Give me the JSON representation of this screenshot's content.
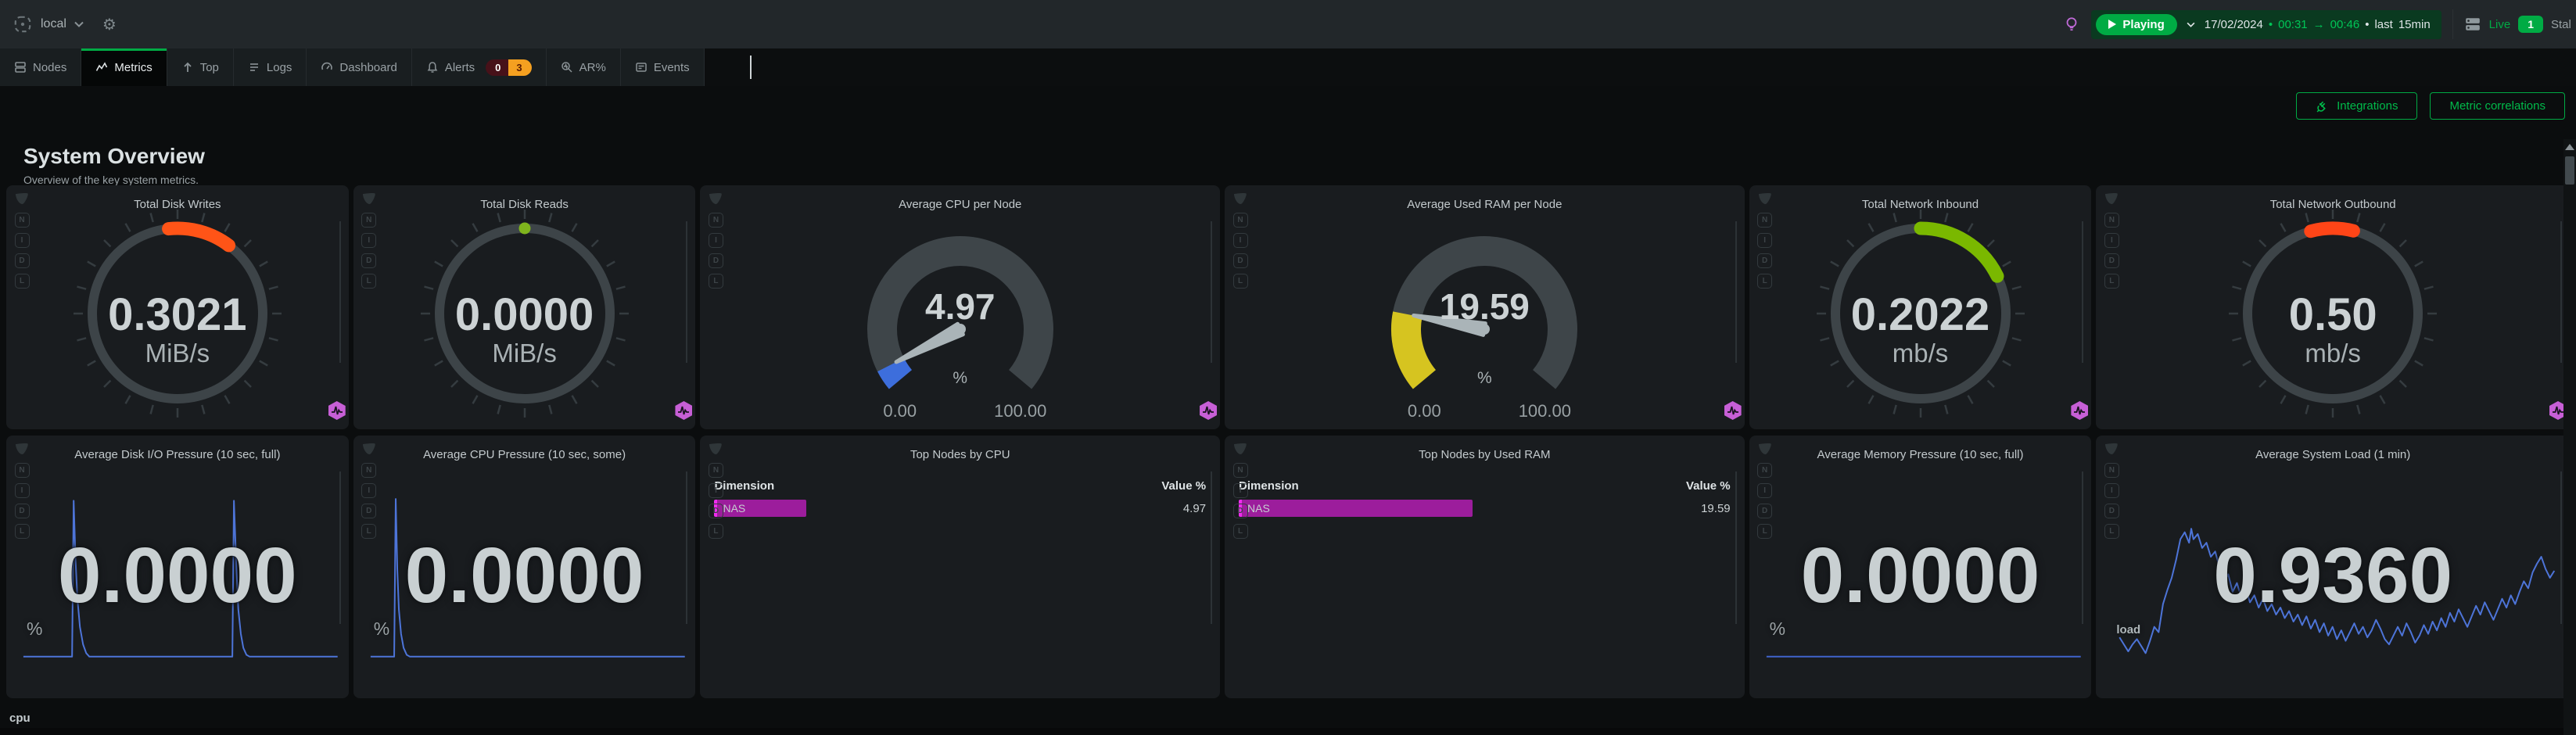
{
  "header": {
    "space_label": "local",
    "playback": {
      "status_label": "Playing",
      "date": "17/02/2024",
      "bullet": "•",
      "time_from": "00:31",
      "arrow": "→",
      "time_to": "00:46",
      "range_word": "last",
      "range_value": "15min"
    },
    "nodes_status": {
      "live_label": "Live",
      "live_count": "1",
      "stale_label": "Stal"
    }
  },
  "tabs": [
    {
      "label": "Nodes"
    },
    {
      "label": "Metrics",
      "active": true
    },
    {
      "label": "Top"
    },
    {
      "label": "Logs"
    },
    {
      "label": "Dashboard"
    },
    {
      "label": "Alerts",
      "badge_warning": "0",
      "badge_critical": "3"
    },
    {
      "label": "AR%"
    },
    {
      "label": "Events"
    }
  ],
  "actions": {
    "integrations_label": "Integrations",
    "metric_correlations_label": "Metric correlations"
  },
  "page": {
    "title": "System Overview",
    "subtitle": "Overview of the key system metrics.",
    "next_section_label": "cpu"
  },
  "toolbox_letters": [
    "N",
    "I",
    "D",
    "L"
  ],
  "colors": {
    "accent_green": "#00ab44",
    "anomaly_purple": "#c75fd6",
    "card_bg": "#191c1f",
    "page_bg": "#0b0d0e"
  },
  "chart_data": [
    {
      "id": "total-disk-writes",
      "row": 1,
      "type": "easypie",
      "title": "Total Disk Writes",
      "value": "0.3021",
      "unit": "MiB/s",
      "arc_start_deg": -6,
      "arc_end_deg": 37,
      "arc_color": "#ff5417",
      "anomaly_icon": true
    },
    {
      "id": "total-disk-reads",
      "row": 1,
      "type": "easypie",
      "title": "Total Disk Reads",
      "value": "0.0000",
      "unit": "MiB/s",
      "arc_start_deg": 0,
      "arc_end_deg": 0,
      "dot": true,
      "arc_color": "#7fb41d",
      "anomaly_icon": true
    },
    {
      "id": "avg-cpu-per-node",
      "row": 1,
      "type": "gauge",
      "title": "Average CPU per Node",
      "value": "4.97",
      "unit": "%",
      "min_label": "0.00",
      "max_label": "100.00",
      "percent": 4.97,
      "fill_color": "#3d6edc",
      "anomaly_icon": true
    },
    {
      "id": "avg-used-ram-per-node",
      "row": 1,
      "type": "gauge",
      "title": "Average Used RAM per Node",
      "value": "19.59",
      "unit": "%",
      "min_label": "0.00",
      "max_label": "100.00",
      "percent": 19.59,
      "fill_color": "#d6c420",
      "anomaly_icon": true
    },
    {
      "id": "total-network-inbound",
      "row": 1,
      "type": "easypie",
      "title": "Total Network Inbound",
      "value": "0.2022",
      "unit": "mb/s",
      "arc_start_deg": 0,
      "arc_end_deg": 64,
      "arc_color": "#7ab800",
      "anomaly_icon": true
    },
    {
      "id": "total-network-outbound",
      "row": 1,
      "type": "easypie",
      "title": "Total Network Outbound",
      "value": "0.50",
      "unit": "mb/s",
      "arc_start_deg": -15,
      "arc_end_deg": 14,
      "arc_color": "#ff4517",
      "anomaly_icon": true
    },
    {
      "id": "avg-disk-io-pressure",
      "row": 2,
      "type": "line",
      "title": "Average Disk I/O Pressure (10 sec, full)",
      "value": "0.0000",
      "unit": "%",
      "line_color": "#4d74d8",
      "points": [
        [
          0,
          95
        ],
        [
          15.5,
          95
        ],
        [
          16,
          6
        ],
        [
          16.6,
          40
        ],
        [
          17.2,
          62
        ],
        [
          18,
          78
        ],
        [
          19,
          88
        ],
        [
          20,
          93
        ],
        [
          21,
          95
        ],
        [
          66.5,
          95
        ],
        [
          67,
          6
        ],
        [
          67.8,
          45
        ],
        [
          68.4,
          68
        ],
        [
          69.2,
          82
        ],
        [
          70,
          90
        ],
        [
          71,
          94
        ],
        [
          72,
          95
        ],
        [
          100,
          95
        ]
      ]
    },
    {
      "id": "avg-cpu-pressure",
      "row": 2,
      "type": "line",
      "title": "Average CPU Pressure (10 sec, some)",
      "value": "0.0000",
      "unit": "%",
      "line_color": "#4d74d8",
      "points": [
        [
          0,
          95
        ],
        [
          7.5,
          95
        ],
        [
          8,
          5
        ],
        [
          8.5,
          45
        ],
        [
          9,
          68
        ],
        [
          9.7,
          82
        ],
        [
          10.5,
          90
        ],
        [
          11.5,
          94
        ],
        [
          12.5,
          95
        ],
        [
          100,
          95
        ]
      ]
    },
    {
      "id": "top-nodes-by-cpu",
      "row": 2,
      "type": "table",
      "title": "Top Nodes by CPU",
      "dim_header": "Dimension",
      "value_header": "Value %",
      "rows": [
        {
          "label": "NAS",
          "value": "4.97",
          "bar_percent": 18,
          "bar_color": "#9c1d9c",
          "bar_edge_color": "#ef2cee"
        }
      ]
    },
    {
      "id": "top-nodes-by-used-ram",
      "row": 2,
      "type": "table",
      "title": "Top Nodes by Used RAM",
      "dim_header": "Dimension",
      "value_header": "Value %",
      "rows": [
        {
          "label": "NAS",
          "value": "19.59",
          "bar_percent": 47,
          "bar_color": "#9c1d9c",
          "bar_edge_color": "#ef2cee"
        }
      ]
    },
    {
      "id": "avg-memory-pressure",
      "row": 2,
      "type": "line",
      "title": "Average Memory Pressure (10 sec, full)",
      "value": "0.0000",
      "unit": "%",
      "line_color": "#3f63cc",
      "points": [
        [
          0,
          95
        ],
        [
          100,
          95
        ]
      ]
    },
    {
      "id": "avg-system-load",
      "row": 2,
      "type": "line",
      "title": "Average System Load (1 min)",
      "value": "0.9360",
      "unit": "load",
      "unit_small": true,
      "line_color": "#4d74d8",
      "points": [
        [
          0,
          84
        ],
        [
          1,
          88
        ],
        [
          2,
          92
        ],
        [
          3,
          88
        ],
        [
          4,
          85
        ],
        [
          5,
          89
        ],
        [
          6,
          93
        ],
        [
          7,
          86
        ],
        [
          8,
          78
        ],
        [
          9,
          81
        ],
        [
          10,
          65
        ],
        [
          11,
          57
        ],
        [
          12,
          50
        ],
        [
          13,
          40
        ],
        [
          14,
          28
        ],
        [
          15,
          24
        ],
        [
          16,
          30
        ],
        [
          16.5,
          22
        ],
        [
          17,
          28
        ],
        [
          18,
          25
        ],
        [
          19,
          33
        ],
        [
          20,
          30
        ],
        [
          21,
          38
        ],
        [
          22,
          35
        ],
        [
          23,
          44
        ],
        [
          24,
          52
        ],
        [
          25,
          48
        ],
        [
          26,
          58
        ],
        [
          27,
          53
        ],
        [
          28,
          61
        ],
        [
          29,
          56
        ],
        [
          30,
          64
        ],
        [
          31,
          60
        ],
        [
          32,
          67
        ],
        [
          33,
          62
        ],
        [
          34,
          69
        ],
        [
          35,
          65
        ],
        [
          36,
          71
        ],
        [
          37,
          67
        ],
        [
          38,
          73
        ],
        [
          39,
          69
        ],
        [
          40,
          75
        ],
        [
          41,
          71
        ],
        [
          42,
          77
        ],
        [
          43,
          72
        ],
        [
          44,
          79
        ],
        [
          45,
          74
        ],
        [
          46,
          81
        ],
        [
          47,
          76
        ],
        [
          48,
          83
        ],
        [
          49,
          78
        ],
        [
          50,
          85
        ],
        [
          51,
          80
        ],
        [
          52,
          86
        ],
        [
          53,
          81
        ],
        [
          54,
          76
        ],
        [
          55,
          82
        ],
        [
          56,
          78
        ],
        [
          57,
          84
        ],
        [
          58,
          80
        ],
        [
          59,
          74
        ],
        [
          60,
          79
        ],
        [
          61,
          85
        ],
        [
          62,
          88
        ],
        [
          63,
          83
        ],
        [
          64,
          78
        ],
        [
          65,
          83
        ],
        [
          66,
          76
        ],
        [
          67,
          81
        ],
        [
          68,
          87
        ],
        [
          69,
          83
        ],
        [
          70,
          77
        ],
        [
          71,
          82
        ],
        [
          72,
          75
        ],
        [
          73,
          80
        ],
        [
          74,
          73
        ],
        [
          75,
          78
        ],
        [
          76,
          70
        ],
        [
          77,
          75
        ],
        [
          78,
          68
        ],
        [
          79,
          73
        ],
        [
          80,
          78
        ],
        [
          81,
          72
        ],
        [
          82,
          66
        ],
        [
          83,
          71
        ],
        [
          84,
          64
        ],
        [
          85,
          69
        ],
        [
          86,
          74
        ],
        [
          87,
          68
        ],
        [
          88,
          62
        ],
        [
          89,
          67
        ],
        [
          90,
          60
        ],
        [
          91,
          65
        ],
        [
          92,
          58
        ],
        [
          93,
          52
        ],
        [
          94,
          56
        ],
        [
          95,
          47
        ],
        [
          96,
          42
        ],
        [
          97,
          38
        ],
        [
          98,
          45
        ],
        [
          99,
          50
        ],
        [
          100,
          46
        ]
      ]
    }
  ]
}
